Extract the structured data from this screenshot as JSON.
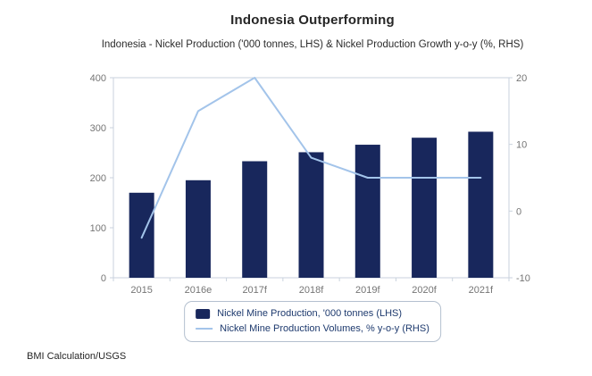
{
  "title": "Indonesia Outperforming",
  "subtitle": "Indonesia - Nickel Production ('000 tonnes, LHS) & Nickel Production Growth y-o-y (%, RHS)",
  "source": "BMI Calculation/USGS",
  "colors": {
    "bar": "#18275c",
    "line": "#a3c4ea",
    "plot_border": "#c9d2dd",
    "tick_label": "#757575",
    "legend_text": "#1e3a6e",
    "legend_border": "#b4c0cf",
    "title_text": "#262626"
  },
  "chart_data": {
    "type": "bar",
    "subtype": "bar+line dual axis",
    "categories": [
      "2015",
      "2016e",
      "2017f",
      "2018f",
      "2019f",
      "2020f",
      "2021f"
    ],
    "series": [
      {
        "name": "Nickel Mine Production, '000 tonnes (LHS)",
        "type": "bar",
        "axis": "left",
        "values": [
          170,
          195,
          233,
          251,
          266,
          280,
          292
        ]
      },
      {
        "name": "Nickel Mine Production Volumes, % y-o-y (RHS)",
        "type": "line",
        "axis": "right",
        "values": [
          -4,
          15,
          20,
          8,
          5,
          5,
          5
        ]
      }
    ],
    "left_axis": {
      "min": 0,
      "max": 400,
      "ticks": [
        0,
        100,
        200,
        300,
        400
      ]
    },
    "right_axis": {
      "min": -10,
      "max": 20,
      "ticks": [
        -10,
        0,
        10,
        20
      ]
    },
    "grid": false,
    "legend_position": "bottom",
    "title": "Indonesia Outperforming",
    "xlabel": "",
    "ylabel_left": "'000 tonnes",
    "ylabel_right": "% y-o-y"
  },
  "legend": {
    "items": [
      {
        "label": "Nickel Mine Production, '000 tonnes (LHS)",
        "swatch": "bar"
      },
      {
        "label": "Nickel Mine Production Volumes, % y-o-y (RHS)",
        "swatch": "line"
      }
    ]
  }
}
